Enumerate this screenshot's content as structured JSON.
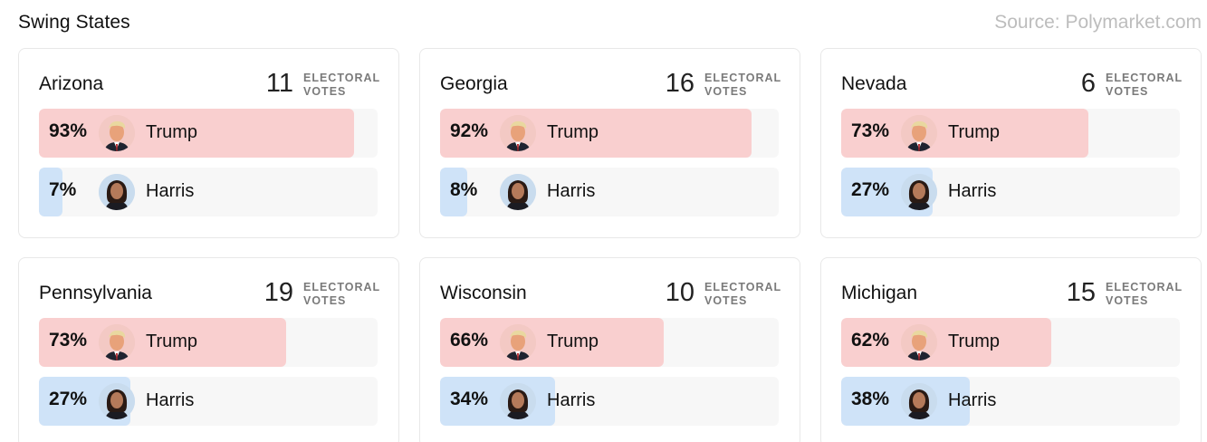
{
  "header": {
    "title": "Swing States",
    "source": "Source: Polymarket.com"
  },
  "ev_label": "ELECTORAL VOTES",
  "colors": {
    "trump_fill": "#f9cfcf",
    "harris_fill": "#cfe3f8",
    "track": "#f7f7f7"
  },
  "states": [
    {
      "name": "Arizona",
      "electoral_votes": "11",
      "trump": {
        "name": "Trump",
        "percent": "93%",
        "share": 93
      },
      "harris": {
        "name": "Harris",
        "percent": "7%",
        "share": 7
      }
    },
    {
      "name": "Georgia",
      "electoral_votes": "16",
      "trump": {
        "name": "Trump",
        "percent": "92%",
        "share": 92
      },
      "harris": {
        "name": "Harris",
        "percent": "8%",
        "share": 8
      }
    },
    {
      "name": "Nevada",
      "electoral_votes": "6",
      "trump": {
        "name": "Trump",
        "percent": "73%",
        "share": 73
      },
      "harris": {
        "name": "Harris",
        "percent": "27%",
        "share": 27
      }
    },
    {
      "name": "Pennsylvania",
      "electoral_votes": "19",
      "trump": {
        "name": "Trump",
        "percent": "73%",
        "share": 73
      },
      "harris": {
        "name": "Harris",
        "percent": "27%",
        "share": 27
      }
    },
    {
      "name": "Wisconsin",
      "electoral_votes": "10",
      "trump": {
        "name": "Trump",
        "percent": "66%",
        "share": 66
      },
      "harris": {
        "name": "Harris",
        "percent": "34%",
        "share": 34
      }
    },
    {
      "name": "Michigan",
      "electoral_votes": "15",
      "trump": {
        "name": "Trump",
        "percent": "62%",
        "share": 62
      },
      "harris": {
        "name": "Harris",
        "percent": "38%",
        "share": 38
      }
    }
  ]
}
